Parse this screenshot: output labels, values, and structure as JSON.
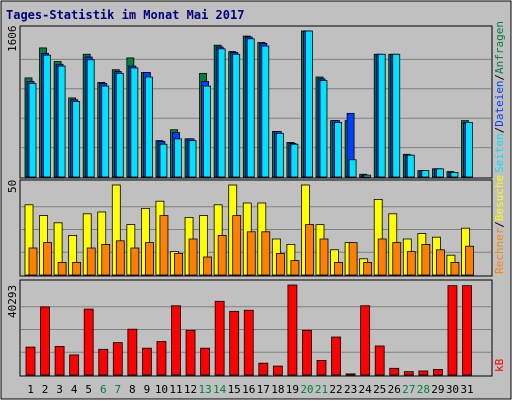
{
  "title": "Tages-Statistik im Monat Mai 2017",
  "colors": {
    "hits": "#008040",
    "files": "#0040ff",
    "pages": "#00e0ff",
    "visits": "#ffff00",
    "sites": "#ff8000",
    "kbytes": "#ff0000",
    "weekend": "#008040",
    "weekday": "#000000"
  },
  "chart_data": [
    {
      "type": "bar",
      "ylabel_max": "1606",
      "legend": [
        "Anfragen",
        "Dateien",
        "Seiten"
      ],
      "categories": [
        "1",
        "2",
        "3",
        "4",
        "5",
        "6",
        "7",
        "8",
        "9",
        "10",
        "11",
        "12",
        "13",
        "14",
        "15",
        "16",
        "17",
        "18",
        "19",
        "20",
        "21",
        "22",
        "23",
        "24",
        "25",
        "26",
        "27",
        "28",
        "29",
        "30",
        "31"
      ],
      "weekend_days": [
        "6",
        "7",
        "13",
        "14",
        "20",
        "21",
        "27",
        "28"
      ],
      "series": [
        {
          "name": "Anfragen",
          "values": [
            1090,
            1420,
            1270,
            870,
            1350,
            1040,
            1180,
            1310,
            1150,
            400,
            520,
            420,
            1140,
            1450,
            1380,
            1550,
            1480,
            500,
            380,
            1606,
            1100,
            620,
            620,
            30,
            1350,
            1350,
            250,
            70,
            90,
            60,
            620
          ]
        },
        {
          "name": "Dateien",
          "values": [
            1050,
            1360,
            1240,
            850,
            1320,
            1030,
            1160,
            1220,
            1150,
            390,
            490,
            420,
            1050,
            1430,
            1370,
            1540,
            1470,
            500,
            370,
            1606,
            1080,
            620,
            700,
            20,
            1350,
            1350,
            240,
            70,
            90,
            50,
            600
          ]
        },
        {
          "name": "Seiten",
          "values": [
            1030,
            1340,
            1220,
            830,
            1290,
            1000,
            1140,
            1200,
            1100,
            360,
            420,
            400,
            1000,
            1410,
            1350,
            1520,
            1440,
            480,
            360,
            1606,
            1060,
            600,
            190,
            20,
            1350,
            1350,
            240,
            70,
            90,
            50,
            600
          ]
        }
      ],
      "ylim": [
        0,
        1606
      ]
    },
    {
      "type": "bar",
      "ylabel_max": "50",
      "legend": [
        "Rechner",
        "Besuche"
      ],
      "categories": [
        "1",
        "2",
        "3",
        "4",
        "5",
        "6",
        "7",
        "8",
        "9",
        "10",
        "11",
        "12",
        "13",
        "14",
        "15",
        "16",
        "17",
        "18",
        "19",
        "20",
        "21",
        "22",
        "23",
        "24",
        "25",
        "26",
        "27",
        "28",
        "29",
        "30",
        "31"
      ],
      "series": [
        {
          "name": "Besuche",
          "values": [
            39,
            33,
            29,
            22,
            34,
            35,
            50,
            28,
            37,
            41,
            13,
            32,
            33,
            39,
            50,
            40,
            40,
            20,
            17,
            50,
            28,
            14,
            18,
            9,
            42,
            34,
            20,
            23,
            21,
            11,
            26
          ]
        },
        {
          "name": "Rechner",
          "values": [
            15,
            18,
            7,
            7,
            15,
            17,
            19,
            15,
            18,
            33,
            12,
            20,
            10,
            22,
            33,
            24,
            24,
            12,
            8,
            28,
            20,
            7,
            18,
            7,
            20,
            18,
            13,
            17,
            14,
            7,
            16
          ]
        }
      ],
      "ylim": [
        0,
        50
      ]
    },
    {
      "type": "bar",
      "ylabel_max": "40293",
      "legend": [
        "kB"
      ],
      "categories": [
        "1",
        "2",
        "3",
        "4",
        "5",
        "6",
        "7",
        "8",
        "9",
        "10",
        "11",
        "12",
        "13",
        "14",
        "15",
        "16",
        "17",
        "18",
        "19",
        "20",
        "21",
        "22",
        "23",
        "24",
        "25",
        "26",
        "27",
        "28",
        "29",
        "30",
        "31"
      ],
      "series": [
        {
          "name": "kB",
          "values": [
            12500,
            30500,
            12800,
            9000,
            29500,
            11500,
            14500,
            20500,
            12000,
            15000,
            31000,
            20000,
            12000,
            33000,
            28500,
            29000,
            5300,
            4000,
            40293,
            20000,
            6500,
            17000,
            500,
            31000,
            13000,
            3000,
            1500,
            1800,
            2500,
            40000,
            40000
          ]
        }
      ],
      "ylim": [
        0,
        40293
      ]
    }
  ]
}
